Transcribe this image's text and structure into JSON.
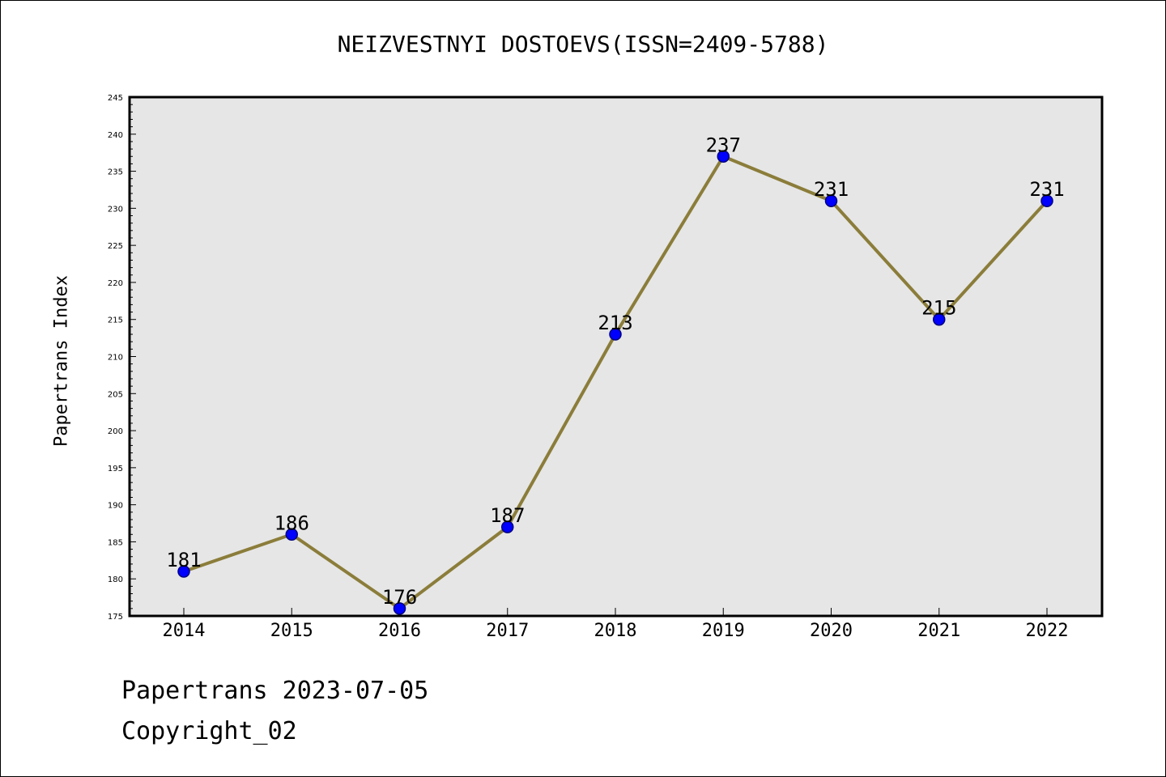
{
  "chart_data": {
    "type": "line",
    "title": "NEIZVESTNYI DOSTOEVS(ISSN=2409-5788)",
    "xlabel": "",
    "ylabel": "Papertrans Index",
    "categories": [
      "2014",
      "2015",
      "2016",
      "2017",
      "2018",
      "2019",
      "2020",
      "2021",
      "2022"
    ],
    "series": [
      {
        "values": [
          181,
          186,
          176,
          187,
          213,
          237,
          231,
          215,
          231
        ]
      }
    ],
    "ylim": [
      175,
      245
    ],
    "y_major_step": 5,
    "y_minor_step": 1,
    "y_ticks": [
      "175",
      "180",
      "185",
      "190",
      "195",
      "200",
      "205",
      "210",
      "215",
      "220",
      "225",
      "230",
      "235",
      "240",
      "245"
    ],
    "data_labels": [
      "181",
      "186",
      "176",
      "187",
      "213",
      "237",
      "231",
      "215",
      "231"
    ],
    "grid": false,
    "legend": "none",
    "colors": {
      "line": "#8b7d3a",
      "marker": "#0000ff",
      "marker_edge": "#000080",
      "plot_bg": "#e6e6e6"
    }
  },
  "footer": {
    "date_text": "Papertrans 2023-07-05",
    "copyright_text": "Copyright_02"
  }
}
